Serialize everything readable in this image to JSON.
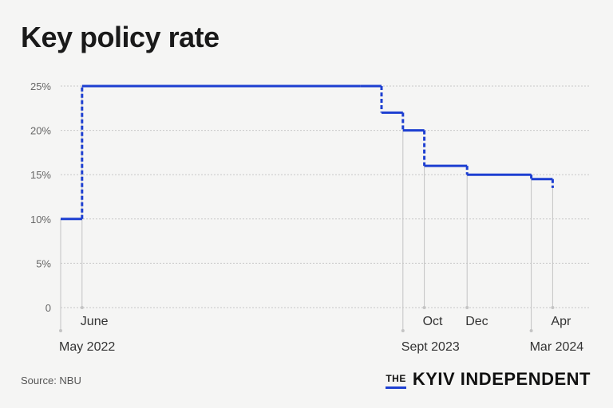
{
  "chart_data": {
    "type": "line",
    "title": "Key policy rate",
    "y_unit": "%",
    "ylim": [
      0,
      25
    ],
    "yticks": [
      "0",
      "5%",
      "10%",
      "15%",
      "20%",
      "25%"
    ],
    "ytick_values": [
      0,
      5,
      10,
      15,
      20,
      25
    ],
    "grid": true,
    "step": true,
    "series": [
      {
        "color": "#1d3fd1",
        "points": [
          {
            "x": "2022-05",
            "y": 10
          },
          {
            "x": "2022-06",
            "y": 25
          },
          {
            "x": "2023-07",
            "y": 25
          },
          {
            "x": "2023-08",
            "y": 22
          },
          {
            "x": "2023-09",
            "y": 20
          },
          {
            "x": "2023-10",
            "y": 16
          },
          {
            "x": "2023-12",
            "y": 15
          },
          {
            "x": "2024-03",
            "y": 14.5
          },
          {
            "x": "2024-04",
            "y": 13.5
          }
        ]
      }
    ],
    "x_labels": [
      {
        "x": "2022-05",
        "text": "May 2022",
        "row": "low"
      },
      {
        "x": "2022-06",
        "text": "June",
        "row": "high"
      },
      {
        "x": "2023-09",
        "text": "Sept 2023",
        "row": "low"
      },
      {
        "x": "2023-10",
        "text": "Oct",
        "row": "high"
      },
      {
        "x": "2023-12",
        "text": "Dec",
        "row": "high"
      },
      {
        "x": "2024-03",
        "text": "Mar 2024",
        "row": "low"
      },
      {
        "x": "2024-04",
        "text": "Apr",
        "row": "high"
      }
    ]
  },
  "source": "Source: NBU",
  "brand": {
    "the": "THE",
    "name": "KYIV INDEPENDENT"
  }
}
